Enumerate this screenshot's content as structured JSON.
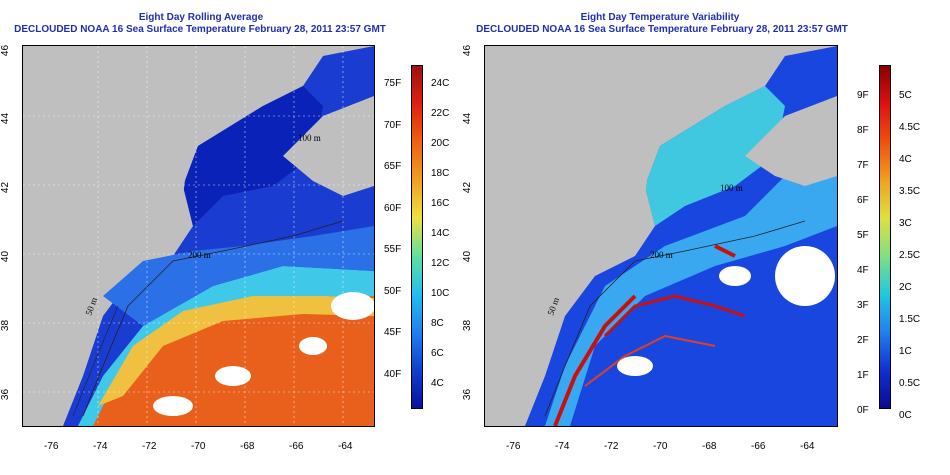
{
  "left_panel": {
    "title1": "Eight Day Rolling Average",
    "title2": "DECLOUDED NOAA 16 Sea Surface Temperature February 28, 2011 23:57 GMT",
    "contour_labels": [
      "200 m",
      "50 m",
      "100 m"
    ],
    "colorbar_f": [
      "75F",
      "70F",
      "65F",
      "60F",
      "55F",
      "50F",
      "45F",
      "40F"
    ],
    "colorbar_c": [
      "24C",
      "22C",
      "20C",
      "18C",
      "16C",
      "14C",
      "12C",
      "10C",
      "8C",
      "6C",
      "4C"
    ]
  },
  "right_panel": {
    "title1": "Eight Day Temperature Variability",
    "title2": "DECLOUDED NOAA 16 Sea Surface Temperature February 28, 2011 23:57 GMT",
    "contour_labels": [
      "200 m",
      "50 m",
      "100 m"
    ],
    "colorbar_f": [
      "9F",
      "8F",
      "7F",
      "6F",
      "5F",
      "4F",
      "3F",
      "2F",
      "1F",
      "0F"
    ],
    "colorbar_c": [
      "5C",
      "4.5C",
      "4C",
      "3.5C",
      "3C",
      "2.5C",
      "2C",
      "1.5C",
      "1C",
      "0.5C",
      "0C"
    ]
  },
  "x_ticks": [
    "-76",
    "-74",
    "-72",
    "-70",
    "-68",
    "-66",
    "-64"
  ],
  "y_ticks": [
    "46",
    "44",
    "42",
    "40",
    "38",
    "36"
  ],
  "colors": {
    "land": "#bfbfbf",
    "cloud": "#ffffff",
    "title": "#1f2fb0"
  }
}
